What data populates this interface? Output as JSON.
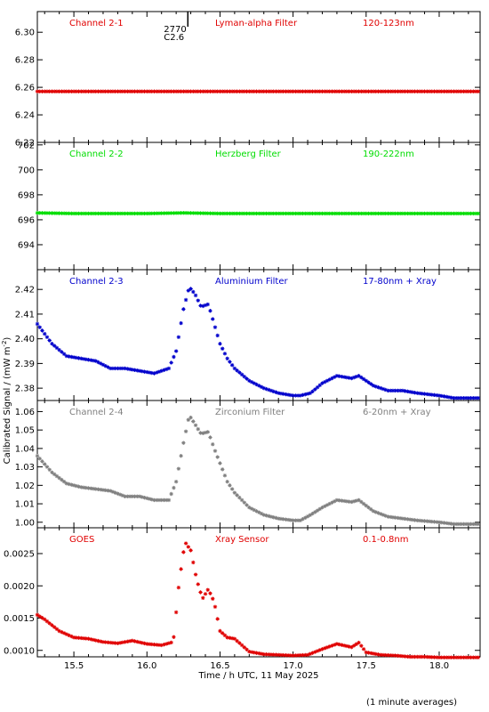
{
  "figure": {
    "ylabel": "Calibrated Signal / (mW m",
    "ylabel_sup": "-2",
    "ylabel_close": ")",
    "xlabel": "Time / h UTC, 11 May 2025",
    "footnote": "(1 minute averages)",
    "flare_marker": [
      "2770",
      "C2.6"
    ]
  },
  "chart_data": [
    {
      "type": "scatter",
      "name": "Channel 2-1",
      "filter": "Lyman-alpha Filter",
      "band": "120-123nm",
      "color": "#e00000",
      "ylim": [
        6.22,
        6.315
      ],
      "yticks": [
        6.22,
        6.24,
        6.26,
        6.28,
        6.3
      ],
      "ytick_labels": [
        "6.22",
        "6.24",
        "6.26",
        "6.28",
        "6.30"
      ],
      "x": [
        15.25,
        15.5,
        15.75,
        16.0,
        16.25,
        16.5,
        16.75,
        17.0,
        17.25,
        17.5,
        17.75,
        18.0,
        18.27
      ],
      "y": [
        6.257,
        6.257,
        6.257,
        6.257,
        6.257,
        6.257,
        6.257,
        6.257,
        6.257,
        6.257,
        6.257,
        6.257,
        6.257
      ]
    },
    {
      "type": "scatter",
      "name": "Channel 2-2",
      "filter": "Herzberg Filter",
      "band": "190-222nm",
      "color": "#00dd00",
      "ylim": [
        692.0,
        702.2
      ],
      "yticks": [
        694,
        696,
        698,
        700,
        702
      ],
      "ytick_labels": [
        "694",
        "696",
        "698",
        "700",
        "702"
      ],
      "x": [
        15.25,
        15.5,
        15.75,
        16.0,
        16.25,
        16.5,
        16.75,
        17.0,
        17.25,
        17.5,
        17.75,
        18.0,
        18.27
      ],
      "y": [
        696.55,
        696.5,
        696.5,
        696.5,
        696.55,
        696.5,
        696.5,
        696.5,
        696.5,
        696.5,
        696.5,
        696.5,
        696.5
      ]
    },
    {
      "type": "scatter",
      "name": "Channel 2-3",
      "filter": "Aluminium Filter",
      "band": "17-80nm + Xray",
      "color": "#0000cc",
      "ylim": [
        2.375,
        2.428
      ],
      "yticks": [
        2.38,
        2.39,
        2.4,
        2.41,
        2.42
      ],
      "ytick_labels": [
        "2.38",
        "2.39",
        "2.40",
        "2.41",
        "2.42"
      ],
      "x": [
        15.25,
        15.35,
        15.45,
        15.55,
        15.65,
        15.75,
        15.85,
        15.95,
        16.05,
        16.15,
        16.2,
        16.25,
        16.29,
        16.33,
        16.37,
        16.42,
        16.46,
        16.5,
        16.55,
        16.6,
        16.7,
        16.8,
        16.9,
        17.0,
        17.05,
        17.12,
        17.2,
        17.3,
        17.4,
        17.45,
        17.55,
        17.65,
        17.75,
        17.85,
        18.0,
        18.1,
        18.27
      ],
      "y": [
        2.406,
        2.398,
        2.393,
        2.392,
        2.391,
        2.388,
        2.388,
        2.387,
        2.386,
        2.388,
        2.395,
        2.412,
        2.421,
        2.418,
        2.413,
        2.414,
        2.406,
        2.398,
        2.392,
        2.388,
        2.383,
        2.38,
        2.378,
        2.377,
        2.377,
        2.378,
        2.382,
        2.385,
        2.384,
        2.385,
        2.381,
        2.379,
        2.379,
        2.378,
        2.377,
        2.376,
        2.376
      ]
    },
    {
      "type": "scatter",
      "name": "Channel 2-4",
      "filter": "Zirconium Filter",
      "band": "6-20nm + Xray",
      "color": "#808080",
      "ylim": [
        0.997,
        1.066
      ],
      "yticks": [
        1.0,
        1.01,
        1.02,
        1.03,
        1.04,
        1.05,
        1.06
      ],
      "ytick_labels": [
        "1.00",
        "1.01",
        "1.02",
        "1.03",
        "1.04",
        "1.05",
        "1.06"
      ],
      "x": [
        15.25,
        15.35,
        15.45,
        15.55,
        15.65,
        15.75,
        15.85,
        15.95,
        16.05,
        16.15,
        16.2,
        16.25,
        16.29,
        16.33,
        16.37,
        16.42,
        16.46,
        16.5,
        16.55,
        16.6,
        16.7,
        16.8,
        16.9,
        17.0,
        17.05,
        17.12,
        17.2,
        17.3,
        17.4,
        17.45,
        17.55,
        17.65,
        17.75,
        17.85,
        18.0,
        18.1,
        18.27
      ],
      "y": [
        1.036,
        1.027,
        1.021,
        1.019,
        1.018,
        1.017,
        1.014,
        1.014,
        1.012,
        1.012,
        1.022,
        1.043,
        1.058,
        1.053,
        1.048,
        1.049,
        1.04,
        1.032,
        1.022,
        1.016,
        1.008,
        1.004,
        1.002,
        1.001,
        1.001,
        1.004,
        1.008,
        1.012,
        1.011,
        1.012,
        1.006,
        1.003,
        1.002,
        1.001,
        1.0,
        0.999,
        0.999
      ]
    },
    {
      "type": "scatter",
      "name": "GOES",
      "filter": "Xray Sensor",
      "band": "0.1-0.8nm",
      "color": "#e00000",
      "ylim": [
        0.0009,
        0.0029
      ],
      "yticks": [
        0.001,
        0.0015,
        0.002,
        0.0025
      ],
      "ytick_labels": [
        "0.0010",
        "0.0015",
        "0.0020",
        "0.0025"
      ],
      "x": [
        15.25,
        15.3,
        15.4,
        15.5,
        15.6,
        15.7,
        15.8,
        15.9,
        16.0,
        16.1,
        16.18,
        16.22,
        16.26,
        16.3,
        16.34,
        16.38,
        16.42,
        16.46,
        16.5,
        16.55,
        16.6,
        16.7,
        16.8,
        16.9,
        17.0,
        17.1,
        17.2,
        17.3,
        17.4,
        17.45,
        17.5,
        17.6,
        17.7,
        17.8,
        17.9,
        18.0,
        18.1,
        18.27
      ],
      "y": [
        0.00155,
        0.00148,
        0.0013,
        0.0012,
        0.00118,
        0.00113,
        0.00111,
        0.00115,
        0.0011,
        0.00108,
        0.00113,
        0.00205,
        0.00268,
        0.00255,
        0.0021,
        0.0018,
        0.00195,
        0.00175,
        0.0013,
        0.0012,
        0.00118,
        0.00098,
        0.00094,
        0.00093,
        0.00092,
        0.00093,
        0.00102,
        0.0011,
        0.00105,
        0.00112,
        0.00097,
        0.00093,
        0.00092,
        0.0009,
        0.0009,
        0.00089,
        0.00089,
        0.00089
      ]
    }
  ],
  "x_axis": {
    "xlim": [
      15.25,
      18.28
    ],
    "ticks": [
      15.5,
      16.0,
      16.5,
      17.0,
      17.5,
      18.0
    ],
    "tick_labels": [
      "15.5",
      "16.0",
      "16.5",
      "17.0",
      "17.5",
      "18.0"
    ],
    "minor_ticks": [
      15.3,
      15.4,
      15.6,
      15.7,
      15.8,
      15.9,
      16.1,
      16.2,
      16.3,
      16.4,
      16.6,
      16.7,
      16.8,
      16.9,
      17.1,
      17.2,
      17.3,
      17.4,
      17.6,
      17.7,
      17.8,
      17.9,
      18.1,
      18.2
    ],
    "flare_time": 16.28
  }
}
